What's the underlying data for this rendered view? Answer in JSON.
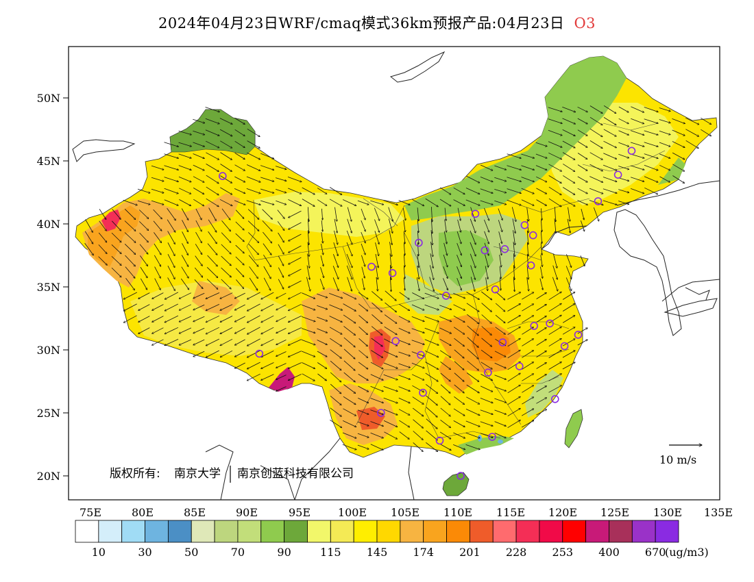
{
  "title": {
    "main": "2024年04月23日WRF/cmaq模式36km预报产品:04月23日",
    "pollutant": "O3",
    "pollutant_color": "#e23a3a"
  },
  "axes": {
    "lat_ticks": [
      "50N",
      "45N",
      "40N",
      "35N",
      "30N",
      "25N",
      "20N"
    ],
    "lon_ticks": [
      "75E",
      "80E",
      "85E",
      "90E",
      "95E",
      "100E",
      "105E",
      "110E",
      "115E",
      "120E",
      "125E",
      "130E",
      "135E"
    ]
  },
  "wind_legend": {
    "label": "10 m/s"
  },
  "copyright": {
    "label": "版权所有:",
    "org1": "南京大学",
    "org2": "南京创蓝科技有限公司"
  },
  "colorbar": {
    "colors": [
      "#ffffff",
      "#d4eefa",
      "#a0dcf5",
      "#6eb4e0",
      "#4b8fc5",
      "#dfe8b8",
      "#bdd67e",
      "#c2de7a",
      "#8fcb4e",
      "#6da83a",
      "#f2f76a",
      "#f4ea55",
      "#ffee00",
      "#ffd800",
      "#f7b441",
      "#f9a41e",
      "#fb8a06",
      "#ef5c2a",
      "#ff6b6e",
      "#f42e56",
      "#f10a48",
      "#ff0000",
      "#c81a78",
      "#a8305a",
      "#9a32c8",
      "#8a2be2"
    ],
    "labels": [
      "10",
      "30",
      "50",
      "70",
      "90",
      "115",
      "145",
      "174",
      "201",
      "228",
      "253",
      "400",
      "670"
    ],
    "unit": "(ug/m3)"
  },
  "stations": [
    {
      "lon": 87.6,
      "lat": 43.8
    },
    {
      "lon": 91.1,
      "lat": 29.7
    },
    {
      "lon": 101.8,
      "lat": 36.6
    },
    {
      "lon": 103.8,
      "lat": 36.1
    },
    {
      "lon": 106.3,
      "lat": 38.5
    },
    {
      "lon": 111.7,
      "lat": 40.8
    },
    {
      "lon": 116.4,
      "lat": 39.9
    },
    {
      "lon": 117.2,
      "lat": 39.1
    },
    {
      "lon": 112.6,
      "lat": 37.9
    },
    {
      "lon": 114.5,
      "lat": 38.0
    },
    {
      "lon": 117.0,
      "lat": 36.7
    },
    {
      "lon": 113.6,
      "lat": 34.8
    },
    {
      "lon": 108.9,
      "lat": 34.3
    },
    {
      "lon": 104.1,
      "lat": 30.7
    },
    {
      "lon": 106.5,
      "lat": 29.6
    },
    {
      "lon": 106.7,
      "lat": 26.6
    },
    {
      "lon": 102.7,
      "lat": 25.0
    },
    {
      "lon": 108.3,
      "lat": 22.8
    },
    {
      "lon": 113.3,
      "lat": 23.1
    },
    {
      "lon": 110.3,
      "lat": 20.0
    },
    {
      "lon": 112.9,
      "lat": 28.2
    },
    {
      "lon": 114.3,
      "lat": 30.6
    },
    {
      "lon": 115.9,
      "lat": 28.7
    },
    {
      "lon": 117.3,
      "lat": 31.9
    },
    {
      "lon": 118.8,
      "lat": 32.1
    },
    {
      "lon": 120.2,
      "lat": 30.3
    },
    {
      "lon": 121.5,
      "lat": 31.2
    },
    {
      "lon": 119.3,
      "lat": 26.1
    },
    {
      "lon": 123.4,
      "lat": 41.8
    },
    {
      "lon": 125.3,
      "lat": 43.9
    },
    {
      "lon": 126.6,
      "lat": 45.8
    }
  ]
}
